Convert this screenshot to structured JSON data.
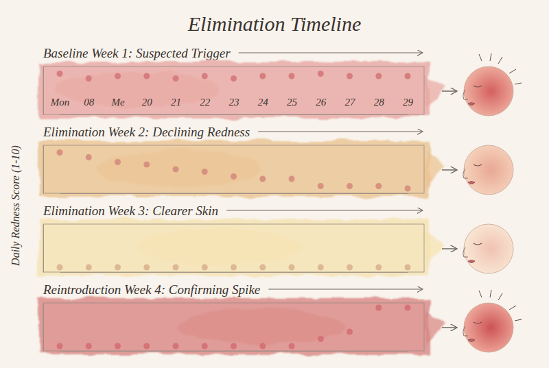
{
  "title": "Elimination Timeline",
  "y_label": "Daily Redness Score (1-10)",
  "chart_data": [
    {
      "type": "dot",
      "title": "Baseline Week 1: Suspected Trigger",
      "categories": [
        "Mon",
        "08",
        "Me",
        "20",
        "21",
        "22",
        "23",
        "24",
        "25",
        "26",
        "27",
        "28",
        "29"
      ],
      "values": [
        8.5,
        7.5,
        8,
        8,
        7.5,
        8,
        7.5,
        8,
        8,
        8.5,
        8,
        8,
        8
      ],
      "color": "#d4787a",
      "ylim": [
        0,
        10
      ],
      "tick_labels": "x"
    },
    {
      "type": "dot",
      "title": "Elimination Week 2: Declining Redness",
      "categories": [
        null,
        null,
        null,
        null,
        null,
        null,
        null,
        null,
        null,
        null,
        null,
        null,
        null
      ],
      "values": [
        8.5,
        7.5,
        6.5,
        6,
        5,
        4.5,
        3.5,
        3,
        3,
        1.5,
        1.5,
        1.5,
        1
      ],
      "color": "#d58c7c",
      "ylim": [
        0,
        10
      ],
      "tick_labels": false
    },
    {
      "type": "dot",
      "title": "Elimination Week 3: Clearer Skin",
      "categories": [
        null,
        null,
        null,
        null,
        null,
        null,
        null,
        null,
        null,
        null,
        null,
        null,
        null
      ],
      "values": [
        1,
        1,
        1,
        1,
        1,
        1,
        1,
        1,
        1,
        1,
        1,
        1,
        1
      ],
      "color": "#d9b38e",
      "ylim": [
        0,
        10
      ],
      "tick_labels": false
    },
    {
      "type": "dot",
      "title": "Reintroduction Week 4: Confirming Spike",
      "categories": [
        null,
        null,
        null,
        null,
        null,
        null,
        null,
        null,
        null,
        null,
        null,
        null,
        null
      ],
      "values": [
        1,
        1,
        1,
        1,
        1,
        1,
        1,
        1,
        1,
        2.5,
        4,
        9,
        9
      ],
      "color": "#d46f72",
      "ylim": [
        0,
        10
      ],
      "tick_labels": false
    }
  ]
}
